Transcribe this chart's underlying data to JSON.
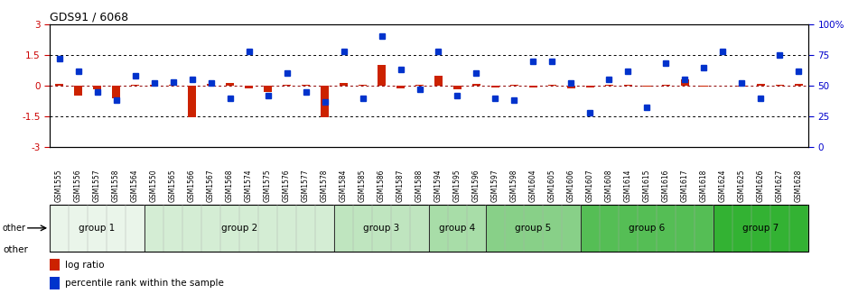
{
  "title": "GDS91 / 6068",
  "samples": [
    "GSM1555",
    "GSM1556",
    "GSM1557",
    "GSM1558",
    "GSM1564",
    "GSM1550",
    "GSM1565",
    "GSM1566",
    "GSM1567",
    "GSM1568",
    "GSM1574",
    "GSM1575",
    "GSM1576",
    "GSM1577",
    "GSM1578",
    "GSM1584",
    "GSM1585",
    "GSM1586",
    "GSM1587",
    "GSM1588",
    "GSM1594",
    "GSM1595",
    "GSM1596",
    "GSM1597",
    "GSM1598",
    "GSM1604",
    "GSM1605",
    "GSM1606",
    "GSM1607",
    "GSM1608",
    "GSM1614",
    "GSM1615",
    "GSM1616",
    "GSM1617",
    "GSM1618",
    "GSM1624",
    "GSM1625",
    "GSM1626",
    "GSM1627",
    "GSM1628"
  ],
  "log_ratio": [
    0.1,
    -0.5,
    -0.2,
    -0.6,
    0.05,
    0.05,
    0.05,
    -1.55,
    0.1,
    0.15,
    -0.15,
    -0.3,
    0.05,
    0.05,
    -1.55,
    0.15,
    0.05,
    1.0,
    -0.15,
    0.05,
    0.5,
    -0.2,
    0.1,
    -0.1,
    0.05,
    -0.1,
    0.05,
    -0.15,
    -0.1,
    0.05,
    0.05,
    -0.05,
    0.05,
    0.3,
    -0.05,
    0.0,
    -0.05,
    0.1,
    0.05,
    0.1
  ],
  "percentile": [
    72,
    62,
    45,
    38,
    58,
    52,
    53,
    55,
    52,
    40,
    78,
    42,
    60,
    45,
    37,
    78,
    40,
    90,
    63,
    47,
    78,
    42,
    60,
    40,
    38,
    70,
    70,
    52,
    28,
    55,
    62,
    32,
    68,
    55,
    65,
    78,
    52,
    40,
    75,
    62
  ],
  "groups": [
    {
      "name": "group 1",
      "start": 0,
      "end": 5,
      "color": "#eaf5ea"
    },
    {
      "name": "group 2",
      "start": 5,
      "end": 15,
      "color": "#d4edd4"
    },
    {
      "name": "group 3",
      "start": 15,
      "end": 20,
      "color": "#bfe5bf"
    },
    {
      "name": "group 4",
      "start": 20,
      "end": 23,
      "color": "#a8dda8"
    },
    {
      "name": "group 5",
      "start": 23,
      "end": 28,
      "color": "#88d088"
    },
    {
      "name": "group 6",
      "start": 28,
      "end": 35,
      "color": "#55be55"
    },
    {
      "name": "group 7",
      "start": 35,
      "end": 40,
      "color": "#33b233"
    }
  ],
  "ylim_left": [
    -3,
    3
  ],
  "ylim_right": [
    0,
    100
  ],
  "yticks_left": [
    -3,
    -1.5,
    0,
    1.5,
    3
  ],
  "ytick_labels_left": [
    "-3",
    "-1.5",
    "0",
    "1.5",
    "3"
  ],
  "yticks_right": [
    0,
    25,
    50,
    75,
    100
  ],
  "ytick_labels_right": [
    "0",
    "25",
    "50",
    "75",
    "100%"
  ],
  "bar_color": "#cc2200",
  "dot_color": "#0033cc",
  "bg_color": "#ffffff",
  "left_axis_color": "#cc0000",
  "right_axis_color": "#0000cc"
}
